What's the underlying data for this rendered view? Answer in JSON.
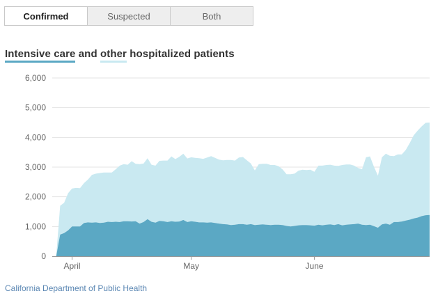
{
  "tabs": [
    {
      "label": "Confirmed",
      "active": true
    },
    {
      "label": "Suspected",
      "active": false
    },
    {
      "label": "Both",
      "active": false
    }
  ],
  "title": {
    "icu": "Intensive care",
    "and": " and ",
    "other": "other",
    "rest": " hospitalized patients"
  },
  "colors": {
    "icu": "#5ba8c4",
    "other": "#c9e9f1",
    "grid": "#e3e3e3",
    "axis": "#666666",
    "source": "#5b87b3"
  },
  "source": "California Department of Public Health",
  "chart_data": {
    "type": "area",
    "stacked": true,
    "grid": true,
    "ylim": [
      0,
      6000
    ],
    "yticks": [
      0,
      1000,
      2000,
      3000,
      4000,
      5000,
      6000
    ],
    "ytick_labels": [
      "0",
      "1,000",
      "2,000",
      "3,000",
      "4,000",
      "5,000",
      "6,000"
    ],
    "xlim": [
      "2020-03-27",
      "2020-06-30"
    ],
    "xticks": [
      {
        "date": "2020-04-01",
        "label": "April"
      },
      {
        "date": "2020-05-01",
        "label": "May"
      },
      {
        "date": "2020-06-01",
        "label": "June"
      }
    ],
    "x": [
      "2020-03-27",
      "2020-03-28",
      "2020-03-29",
      "2020-03-30",
      "2020-03-31",
      "2020-04-01",
      "2020-04-02",
      "2020-04-03",
      "2020-04-04",
      "2020-04-05",
      "2020-04-06",
      "2020-04-07",
      "2020-04-08",
      "2020-04-09",
      "2020-04-10",
      "2020-04-11",
      "2020-04-12",
      "2020-04-13",
      "2020-04-14",
      "2020-04-15",
      "2020-04-16",
      "2020-04-17",
      "2020-04-18",
      "2020-04-19",
      "2020-04-20",
      "2020-04-21",
      "2020-04-22",
      "2020-04-23",
      "2020-04-24",
      "2020-04-25",
      "2020-04-26",
      "2020-04-27",
      "2020-04-28",
      "2020-04-29",
      "2020-04-30",
      "2020-05-01",
      "2020-05-02",
      "2020-05-03",
      "2020-05-04",
      "2020-05-05",
      "2020-05-06",
      "2020-05-07",
      "2020-05-08",
      "2020-05-09",
      "2020-05-10",
      "2020-05-11",
      "2020-05-12",
      "2020-05-13",
      "2020-05-14",
      "2020-05-15",
      "2020-05-16",
      "2020-05-17",
      "2020-05-18",
      "2020-05-19",
      "2020-05-20",
      "2020-05-21",
      "2020-05-22",
      "2020-05-23",
      "2020-05-24",
      "2020-05-25",
      "2020-05-26",
      "2020-05-27",
      "2020-05-28",
      "2020-05-29",
      "2020-05-30",
      "2020-05-31",
      "2020-06-01",
      "2020-06-02",
      "2020-06-03",
      "2020-06-04",
      "2020-06-05",
      "2020-06-06",
      "2020-06-07",
      "2020-06-08",
      "2020-06-09",
      "2020-06-10",
      "2020-06-11",
      "2020-06-12",
      "2020-06-13",
      "2020-06-14",
      "2020-06-15",
      "2020-06-16",
      "2020-06-17",
      "2020-06-18",
      "2020-06-19",
      "2020-06-20",
      "2020-06-21",
      "2020-06-22",
      "2020-06-23",
      "2020-06-24",
      "2020-06-25",
      "2020-06-26",
      "2020-06-27",
      "2020-06-28",
      "2020-06-29",
      "2020-06-30"
    ],
    "series": [
      {
        "name": "Intensive care",
        "values": [
          0,
          0,
          730,
          780,
          870,
          1000,
          1000,
          1000,
          1120,
          1140,
          1130,
          1140,
          1120,
          1130,
          1160,
          1150,
          1160,
          1150,
          1180,
          1180,
          1170,
          1180,
          1100,
          1150,
          1250,
          1160,
          1130,
          1190,
          1180,
          1150,
          1180,
          1160,
          1170,
          1220,
          1150,
          1180,
          1160,
          1140,
          1140,
          1130,
          1140,
          1120,
          1100,
          1080,
          1070,
          1050,
          1060,
          1080,
          1080,
          1060,
          1080,
          1050,
          1060,
          1070,
          1060,
          1050,
          1060,
          1060,
          1050,
          1020,
          1000,
          1020,
          1040,
          1050,
          1050,
          1040,
          1030,
          1060,
          1040,
          1060,
          1070,
          1050,
          1080,
          1040,
          1060,
          1070,
          1080,
          1100,
          1060,
          1050,
          1060,
          1010,
          960,
          1070,
          1100,
          1060,
          1150,
          1150,
          1170,
          1200,
          1230,
          1270,
          1300,
          1350,
          1380,
          1390
        ]
      },
      {
        "name": "other",
        "values": [
          0,
          0,
          970,
          1020,
          1250,
          1280,
          1300,
          1290,
          1340,
          1440,
          1610,
          1640,
          1680,
          1690,
          1660,
          1670,
          1770,
          1900,
          1920,
          1900,
          2030,
          1930,
          2000,
          1970,
          2050,
          1920,
          1920,
          2020,
          2040,
          2070,
          2180,
          2110,
          2180,
          2230,
          2140,
          2150,
          2150,
          2160,
          2140,
          2190,
          2230,
          2190,
          2150,
          2150,
          2170,
          2190,
          2160,
          2240,
          2260,
          2170,
          2040,
          1840,
          2040,
          2040,
          2050,
          2020,
          2010,
          1970,
          1870,
          1740,
          1760,
          1760,
          1840,
          1860,
          1850,
          1870,
          1810,
          1990,
          2010,
          2010,
          2010,
          2000,
          1960,
          2030,
          2030,
          2020,
          1970,
          1870,
          1870,
          2280,
          2300,
          2000,
          1750,
          2260,
          2350,
          2320,
          2220,
          2280,
          2260,
          2380,
          2580,
          2800,
          2930,
          3020,
          3110,
          3110
        ]
      }
    ]
  }
}
